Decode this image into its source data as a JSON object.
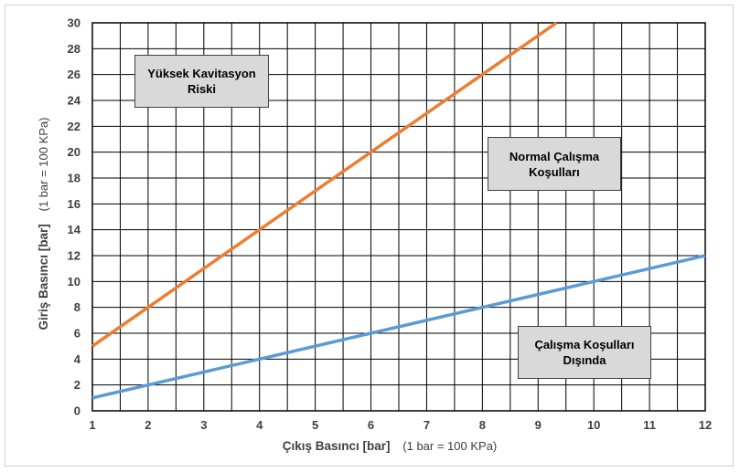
{
  "chart_data": {
    "type": "line",
    "title": "",
    "xlabel": "Çıkış Basıncı [bar]",
    "xlabel_note": "(1 bar = 100 KPa)",
    "ylabel": "Giriş Basıncı [bar]",
    "ylabel_note": "(1 bar = 100 KPa)",
    "xlim": [
      1,
      12
    ],
    "ylim": [
      0,
      30
    ],
    "x_ticks": [
      1,
      2,
      3,
      4,
      5,
      6,
      7,
      8,
      9,
      10,
      11,
      12
    ],
    "y_ticks": [
      0,
      2,
      4,
      6,
      8,
      10,
      12,
      14,
      16,
      18,
      20,
      22,
      24,
      26,
      28,
      30
    ],
    "grid": true,
    "series": [
      {
        "name": "upper-limit",
        "color": "#ed7d31",
        "x": [
          1,
          9.33
        ],
        "y": [
          5,
          30
        ]
      },
      {
        "name": "lower-limit",
        "color": "#5b9bd5",
        "x": [
          1,
          12
        ],
        "y": [
          1,
          12
        ]
      }
    ],
    "annotations": [
      {
        "id": "high-cavitation",
        "text": "Yüksek Kavitasyon\nRiski"
      },
      {
        "id": "normal",
        "text": "Normal Çalışma\nKoşulları"
      },
      {
        "id": "outside",
        "text": "Çalışma Koşulları\nDışında"
      }
    ]
  }
}
